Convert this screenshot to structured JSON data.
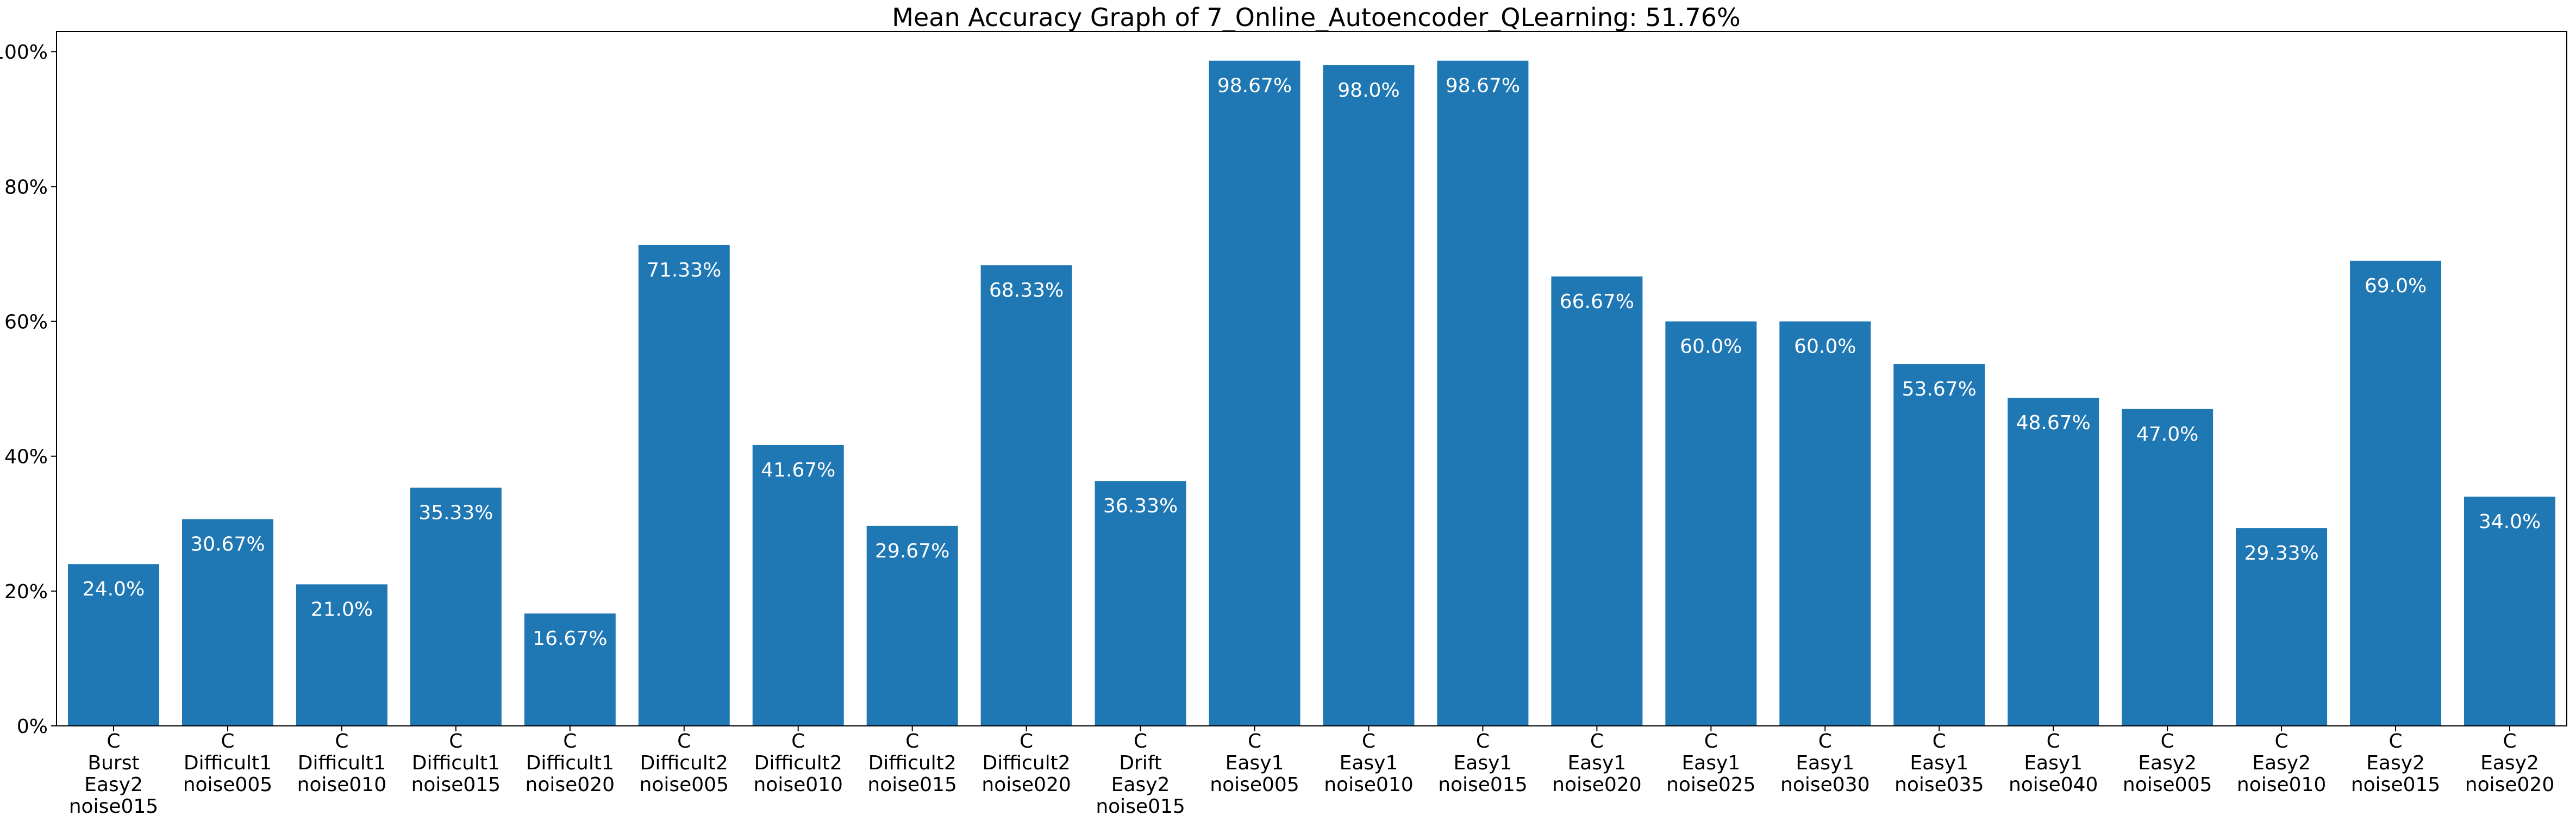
{
  "chart_data": {
    "type": "bar",
    "title": "Mean Accuracy Graph of 7_Online_Autoencoder_QLearning: 51.76%",
    "xlabel": "",
    "ylabel": "",
    "ylim": [
      0,
      1.03
    ],
    "yticks": [
      0,
      0.2,
      0.4,
      0.6,
      0.8,
      1.0
    ],
    "ytick_labels": [
      "0%",
      "20%",
      "40%",
      "60%",
      "80%",
      "100%"
    ],
    "grid": false,
    "bar_color": "#1f77b4",
    "categories": [
      [
        "C",
        "Burst",
        "Easy2",
        "noise015"
      ],
      [
        "C",
        "Difficult1",
        "noise005"
      ],
      [
        "C",
        "Difficult1",
        "noise010"
      ],
      [
        "C",
        "Difficult1",
        "noise015"
      ],
      [
        "C",
        "Difficult1",
        "noise020"
      ],
      [
        "C",
        "Difficult2",
        "noise005"
      ],
      [
        "C",
        "Difficult2",
        "noise010"
      ],
      [
        "C",
        "Difficult2",
        "noise015"
      ],
      [
        "C",
        "Difficult2",
        "noise020"
      ],
      [
        "C",
        "Drift",
        "Easy2",
        "noise015"
      ],
      [
        "C",
        "Easy1",
        "noise005"
      ],
      [
        "C",
        "Easy1",
        "noise010"
      ],
      [
        "C",
        "Easy1",
        "noise015"
      ],
      [
        "C",
        "Easy1",
        "noise020"
      ],
      [
        "C",
        "Easy1",
        "noise025"
      ],
      [
        "C",
        "Easy1",
        "noise030"
      ],
      [
        "C",
        "Easy1",
        "noise035"
      ],
      [
        "C",
        "Easy1",
        "noise040"
      ],
      [
        "C",
        "Easy2",
        "noise005"
      ],
      [
        "C",
        "Easy2",
        "noise010"
      ],
      [
        "C",
        "Easy2",
        "noise015"
      ],
      [
        "C",
        "Easy2",
        "noise020"
      ]
    ],
    "values": [
      0.24,
      0.3067,
      0.21,
      0.3533,
      0.1667,
      0.7133,
      0.4167,
      0.2967,
      0.6833,
      0.3633,
      0.9867,
      0.98,
      0.9867,
      0.6667,
      0.6,
      0.6,
      0.5367,
      0.4867,
      0.47,
      0.2933,
      0.69,
      0.34
    ],
    "data_labels": [
      "24.0%",
      "30.67%",
      "21.0%",
      "35.33%",
      "16.67%",
      "71.33%",
      "41.67%",
      "29.67%",
      "68.33%",
      "36.33%",
      "98.67%",
      "98.0%",
      "98.67%",
      "66.67%",
      "60.0%",
      "60.0%",
      "53.67%",
      "48.67%",
      "47.0%",
      "29.33%",
      "69.0%",
      "34.0%"
    ]
  }
}
